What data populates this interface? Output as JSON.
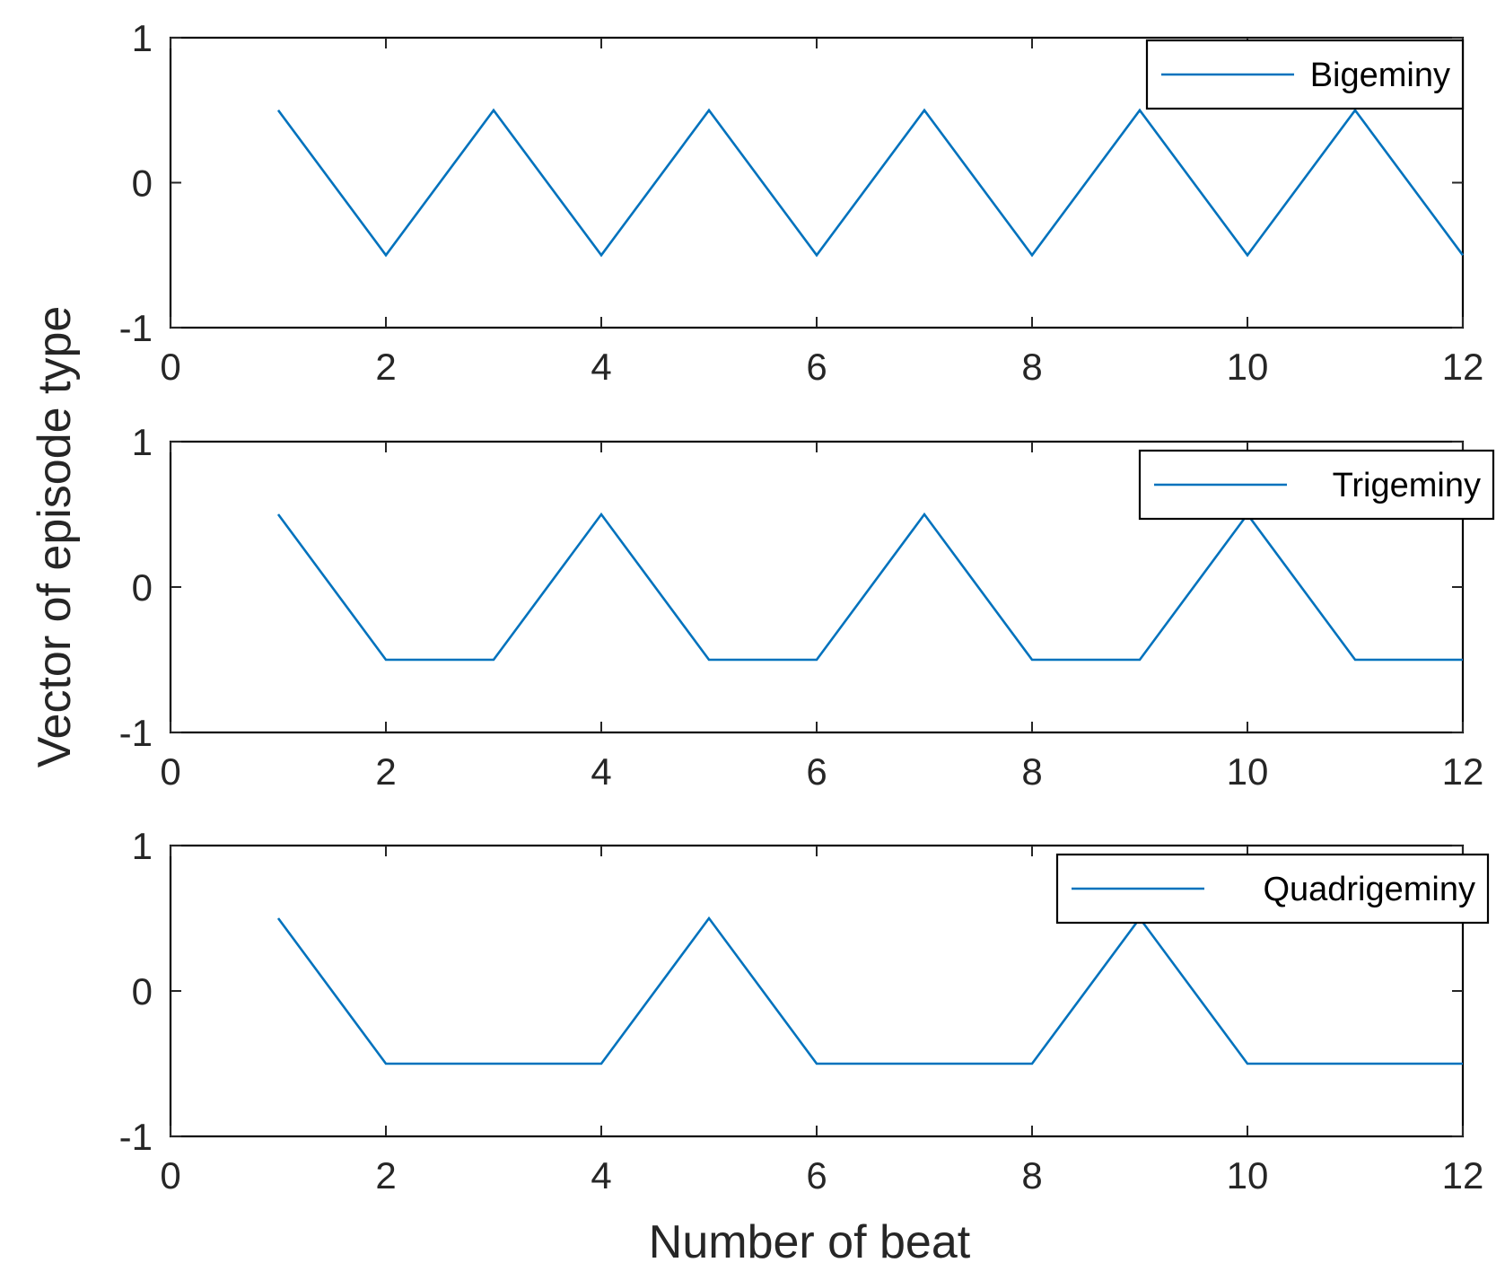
{
  "chart_data": {
    "type": "line",
    "shared_ylabel": "Vector of episode type",
    "shared_xlabel": "Number of beat",
    "subplots": [
      {
        "series": [
          {
            "name": "Bigeminy",
            "x": [
              1,
              2,
              3,
              4,
              5,
              6,
              7,
              8,
              9,
              10,
              11,
              12
            ],
            "y": [
              0.5,
              -0.5,
              0.5,
              -0.5,
              0.5,
              -0.5,
              0.5,
              -0.5,
              0.5,
              -0.5,
              0.5,
              -0.5
            ]
          }
        ],
        "xlim": [
          0,
          12
        ],
        "ylim": [
          -1,
          1
        ],
        "xticks": [
          0,
          2,
          4,
          6,
          8,
          10,
          12
        ],
        "xtick_labels": [
          "0",
          "2",
          "4",
          "6",
          "8",
          "10",
          "12"
        ],
        "yticks": [
          -1,
          0,
          1
        ],
        "ytick_labels": [
          "-1",
          "0",
          "1"
        ],
        "legend_position": "top-right",
        "grid": false
      },
      {
        "series": [
          {
            "name": "Trigeminy",
            "x": [
              1,
              2,
              3,
              4,
              5,
              6,
              7,
              8,
              9,
              10,
              11,
              12
            ],
            "y": [
              0.5,
              -0.5,
              -0.5,
              0.5,
              -0.5,
              -0.5,
              0.5,
              -0.5,
              -0.5,
              0.5,
              -0.5,
              -0.5
            ]
          }
        ],
        "xlim": [
          0,
          12
        ],
        "ylim": [
          -1,
          1
        ],
        "xticks": [
          0,
          2,
          4,
          6,
          8,
          10,
          12
        ],
        "xtick_labels": [
          "0",
          "2",
          "4",
          "6",
          "8",
          "10",
          "12"
        ],
        "yticks": [
          -1,
          0,
          1
        ],
        "ytick_labels": [
          "-1",
          "0",
          "1"
        ],
        "legend_position": "top-right",
        "grid": false
      },
      {
        "series": [
          {
            "name": "Quadrigeminy",
            "x": [
              1,
              2,
              3,
              4,
              5,
              6,
              7,
              8,
              9,
              10,
              11,
              12
            ],
            "y": [
              0.5,
              -0.5,
              -0.5,
              -0.5,
              0.5,
              -0.5,
              -0.5,
              -0.5,
              0.5,
              -0.5,
              -0.5,
              -0.5
            ]
          }
        ],
        "xlim": [
          0,
          12
        ],
        "ylim": [
          -1,
          1
        ],
        "xticks": [
          0,
          2,
          4,
          6,
          8,
          10,
          12
        ],
        "xtick_labels": [
          "0",
          "2",
          "4",
          "6",
          "8",
          "10",
          "12"
        ],
        "yticks": [
          -1,
          0,
          1
        ],
        "ytick_labels": [
          "-1",
          "0",
          "1"
        ],
        "legend_position": "top-right",
        "grid": false
      }
    ],
    "colors": {
      "series": "#0072BD",
      "axes": "#000000",
      "text": "#262626"
    }
  }
}
